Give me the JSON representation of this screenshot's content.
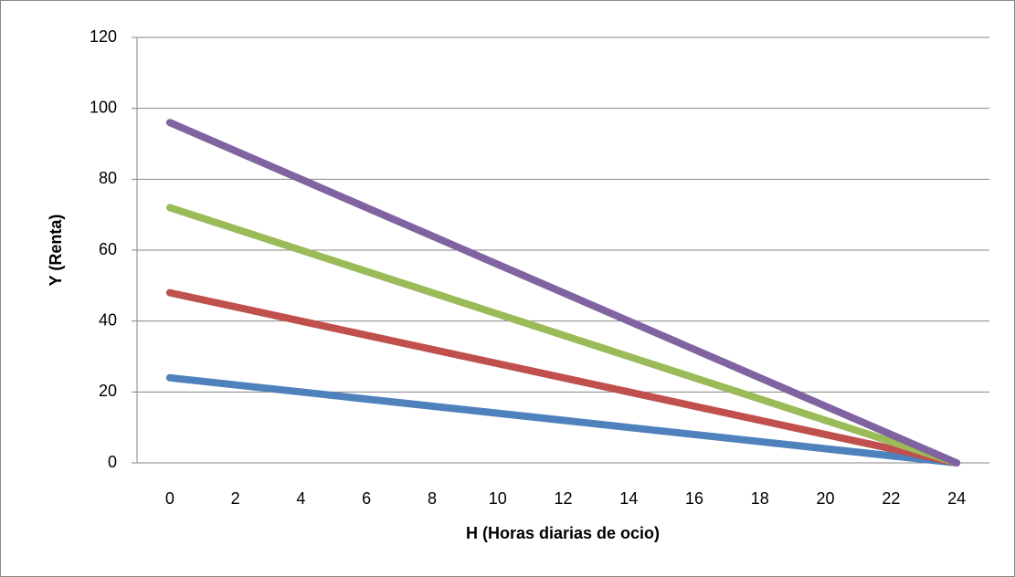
{
  "chart_data": {
    "type": "line",
    "x_label": "H (Horas diarias de ocio)",
    "y_label": "Y (Renta)",
    "x": [
      0,
      2,
      4,
      6,
      8,
      10,
      12,
      14,
      16,
      18,
      20,
      22,
      24
    ],
    "xlim": [
      -1,
      25
    ],
    "xticks": [
      0,
      2,
      4,
      6,
      8,
      10,
      12,
      14,
      16,
      18,
      20,
      22,
      24
    ],
    "ylim": [
      0,
      120
    ],
    "yticks": [
      0,
      20,
      40,
      60,
      80,
      100,
      120
    ],
    "grid": true,
    "series": [
      {
        "color": "#4f81bd",
        "values": [
          24,
          22,
          20,
          18,
          16,
          14,
          12,
          10,
          8,
          6,
          4,
          2,
          0
        ]
      },
      {
        "color": "#c0504d",
        "values": [
          48,
          44,
          40,
          36,
          32,
          28,
          24,
          20,
          16,
          12,
          8,
          4,
          0
        ]
      },
      {
        "color": "#9bbb59",
        "values": [
          72,
          66,
          60,
          54,
          48,
          42,
          36,
          30,
          24,
          18,
          12,
          6,
          0
        ]
      },
      {
        "color": "#8064a2",
        "values": [
          96,
          88,
          80,
          72,
          64,
          56,
          48,
          40,
          32,
          24,
          16,
          8,
          0
        ]
      }
    ]
  }
}
